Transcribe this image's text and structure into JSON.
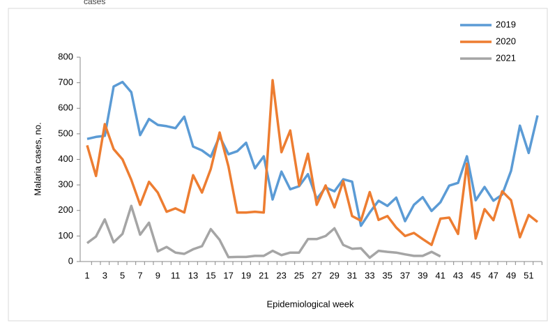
{
  "chart_data": {
    "type": "line",
    "title": "cases",
    "x_label": "Epidemiological week",
    "y_label": "Malaria cases, no.",
    "categories": [
      1,
      null,
      3,
      null,
      5,
      null,
      7,
      null,
      9,
      null,
      11,
      null,
      13,
      null,
      15,
      null,
      17,
      null,
      19,
      null,
      21,
      null,
      23,
      null,
      25,
      null,
      27,
      null,
      29,
      null,
      31,
      null,
      33,
      null,
      35,
      null,
      37,
      null,
      39,
      null,
      41,
      null,
      43,
      null,
      45,
      null,
      47,
      null,
      49,
      null,
      51,
      null
    ],
    "series": [
      {
        "name": "2019",
        "color": "#5b9bd5",
        "values": [
          480,
          488,
          492,
          685,
          703,
          663,
          495,
          558,
          535,
          530,
          522,
          567,
          450,
          435,
          410,
          490,
          420,
          432,
          465,
          365,
          412,
          243,
          352,
          283,
          295,
          342,
          245,
          290,
          275,
          322,
          313,
          140,
          192,
          238,
          218,
          250,
          158,
          222,
          252,
          198,
          232,
          297,
          308,
          412,
          240,
          292,
          238,
          262,
          355,
          532,
          425,
          572
        ]
      },
      {
        "name": "2020",
        "color": "#ed7d31",
        "values": [
          455,
          335,
          538,
          440,
          400,
          320,
          222,
          312,
          270,
          195,
          208,
          192,
          338,
          270,
          362,
          505,
          372,
          192,
          192,
          195,
          192,
          710,
          428,
          513,
          298,
          422,
          222,
          298,
          212,
          315,
          178,
          160,
          272,
          163,
          178,
          133,
          100,
          112,
          88,
          65,
          168,
          172,
          108,
          383,
          90,
          205,
          162,
          275,
          240,
          95,
          182,
          155
        ]
      },
      {
        "name": "2021",
        "color": "#a5a5a5",
        "values": [
          72,
          98,
          165,
          75,
          108,
          218,
          105,
          152,
          40,
          57,
          35,
          30,
          48,
          60,
          127,
          85,
          17,
          18,
          18,
          22,
          22,
          42,
          25,
          35,
          35,
          88,
          88,
          100,
          130,
          65,
          50,
          52,
          15,
          42,
          38,
          35,
          28,
          22,
          22,
          38,
          20,
          null,
          null,
          null,
          null,
          null,
          null,
          null,
          null,
          null,
          null,
          null
        ]
      }
    ],
    "ylim": [
      0,
      800
    ],
    "yticks": [
      0,
      100,
      200,
      300,
      400,
      500,
      600,
      700,
      800
    ],
    "legend": "top-right"
  }
}
